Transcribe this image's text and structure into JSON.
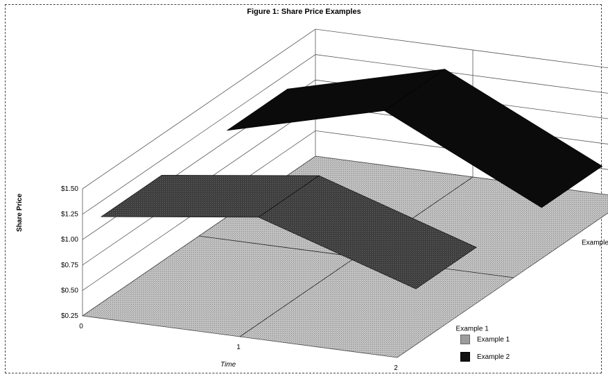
{
  "chart_data": {
    "type": "area",
    "title": "Figure 1: Share Price Examples",
    "xlabel": "Time",
    "ylabel": "Share Price",
    "x": [
      0,
      1,
      2
    ],
    "categories": [
      "Example 1",
      "Example 2"
    ],
    "y_ticks": [
      "$0.25",
      "$0.50",
      "$0.75",
      "$1.00",
      "$1.25",
      "$1.50"
    ],
    "ylim": [
      0.25,
      1.5
    ],
    "series": [
      {
        "name": "Example 1",
        "values": [
          1.1,
          1.3,
          0.8
        ]
      },
      {
        "name": "Example 2",
        "values": [
          1.1,
          1.5,
          0.75
        ]
      }
    ],
    "legend_position": "bottom-right",
    "grid": true,
    "colors": {
      "floor": "#b4b4b4",
      "example1": "#3a3a3a",
      "example2": "#0b0b0b"
    }
  }
}
